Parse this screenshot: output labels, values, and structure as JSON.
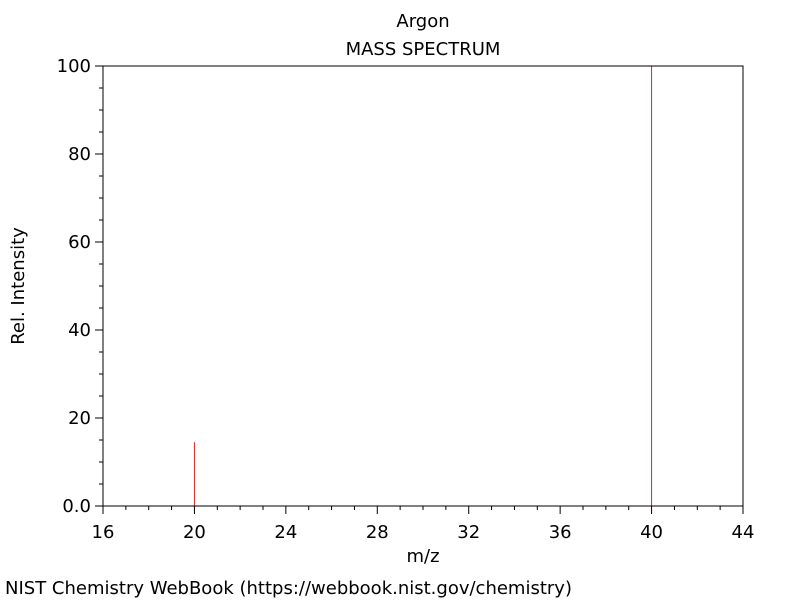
{
  "chart_data": {
    "type": "bar",
    "title": "Argon",
    "subtitle": "MASS SPECTRUM",
    "xlabel": "m/z",
    "ylabel": "Rel. Intensity",
    "xlim": [
      16,
      44
    ],
    "ylim": [
      0,
      100
    ],
    "x_ticks": [
      16,
      20,
      24,
      28,
      32,
      36,
      40,
      44
    ],
    "y_ticks": [
      0,
      20,
      40,
      60,
      80,
      100
    ],
    "y_tick_labels": [
      "0.0",
      "20",
      "40",
      "60",
      "80",
      "100"
    ],
    "x_minor_step": 1,
    "y_minor_step": 5,
    "grid": false,
    "peak_color": "#d62728",
    "peaks": [
      {
        "mz": 20,
        "intensity": 14.5
      },
      {
        "mz": 40,
        "intensity": 100
      }
    ]
  },
  "footer": {
    "credit": "NIST Chemistry WebBook (https://webbook.nist.gov/chemistry)"
  }
}
